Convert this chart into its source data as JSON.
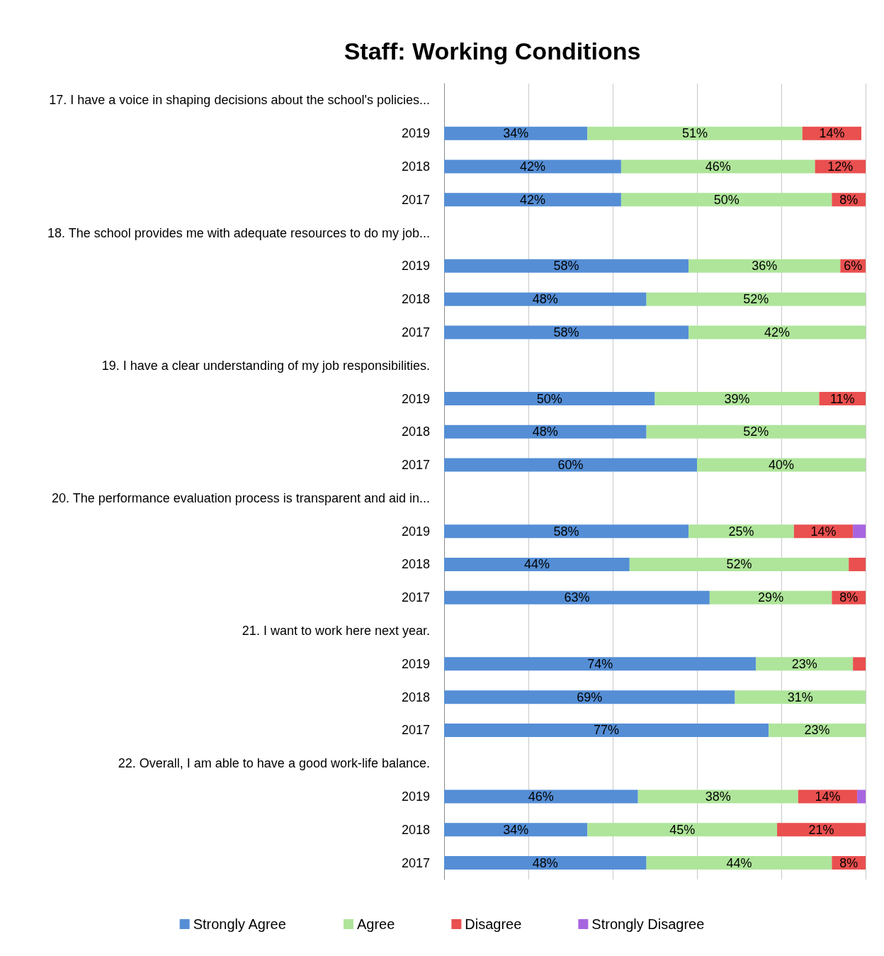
{
  "chart_data": {
    "type": "bar",
    "title": "Staff: Working Conditions",
    "orientation": "horizontal",
    "stacked": true,
    "categories": [
      "17. I have a voice in shaping decisions about the school's policies...",
      "2019",
      "2018",
      "2017",
      "18. The school provides me with adequate resources to do my job...",
      "2019",
      "2018",
      "2017",
      "19. I have a clear understanding of my job responsibilities.",
      "2019",
      "2018",
      "2017",
      "20. The performance evaluation process is transparent and aid in...",
      "2019",
      "2018",
      "2017",
      "21. I want to work here next year.",
      "2019",
      "2018",
      "2017",
      "22. Overall, I am able to have a good work-life balance.",
      "2019",
      "2018",
      "2017"
    ],
    "series": [
      {
        "name": "Strongly Agree",
        "color": "#558ed5",
        "values": [
          null,
          34,
          42,
          42,
          null,
          58,
          48,
          58,
          null,
          50,
          48,
          60,
          null,
          58,
          44,
          63,
          null,
          74,
          69,
          77,
          null,
          46,
          34,
          48
        ],
        "value_labels": [
          null,
          "34%",
          "42%",
          "42%",
          null,
          "58%",
          "48%",
          "58%",
          null,
          "50%",
          "48%",
          "60%",
          null,
          "58%",
          "44%",
          "63%",
          null,
          "74%",
          "69%",
          "77%",
          null,
          "46%",
          "34%",
          "48%"
        ]
      },
      {
        "name": "Agree",
        "color": "#aee59a",
        "values": [
          null,
          51,
          46,
          50,
          null,
          36,
          52,
          42,
          null,
          39,
          52,
          40,
          null,
          25,
          52,
          29,
          null,
          23,
          31,
          23,
          null,
          38,
          45,
          44
        ],
        "value_labels": [
          null,
          "51%",
          "46%",
          "50%",
          null,
          "36%",
          "52%",
          "42%",
          null,
          "39%",
          "52%",
          "40%",
          null,
          "25%",
          "52%",
          "29%",
          null,
          "23%",
          "31%",
          "23%",
          null,
          "38%",
          "45%",
          "44%"
        ]
      },
      {
        "name": "Disagree",
        "color": "#e9504f",
        "values": [
          null,
          14,
          12,
          8,
          null,
          6,
          null,
          null,
          null,
          11,
          null,
          null,
          null,
          14,
          4,
          8,
          null,
          3,
          null,
          null,
          null,
          14,
          21,
          8
        ],
        "value_labels": [
          null,
          "14%",
          "12%",
          "8%",
          null,
          "6%",
          null,
          null,
          null,
          "11%",
          null,
          null,
          null,
          "14%",
          null,
          "8%",
          null,
          null,
          null,
          null,
          null,
          "14%",
          "21%",
          "8%"
        ]
      },
      {
        "name": "Strongly Disagree",
        "color": "#a865e0",
        "values": [
          null,
          null,
          null,
          null,
          null,
          null,
          null,
          null,
          null,
          null,
          null,
          null,
          null,
          3,
          null,
          null,
          null,
          null,
          null,
          null,
          null,
          2,
          null,
          null
        ],
        "value_labels": [
          null,
          null,
          null,
          null,
          null,
          null,
          null,
          null,
          null,
          null,
          null,
          null,
          null,
          null,
          null,
          null,
          null,
          null,
          null,
          null,
          null,
          null,
          null,
          null
        ]
      }
    ],
    "xlim": [
      0,
      100
    ],
    "xticks": [
      {
        "value": 0,
        "label": null
      },
      {
        "value": 20,
        "label": null
      },
      {
        "value": 40,
        "label": null
      },
      {
        "value": 60,
        "label": null
      },
      {
        "value": 80,
        "label": null
      },
      {
        "value": 100,
        "label": null
      }
    ],
    "grid": "x",
    "legend": "bottom",
    "tick_labels": "y"
  }
}
